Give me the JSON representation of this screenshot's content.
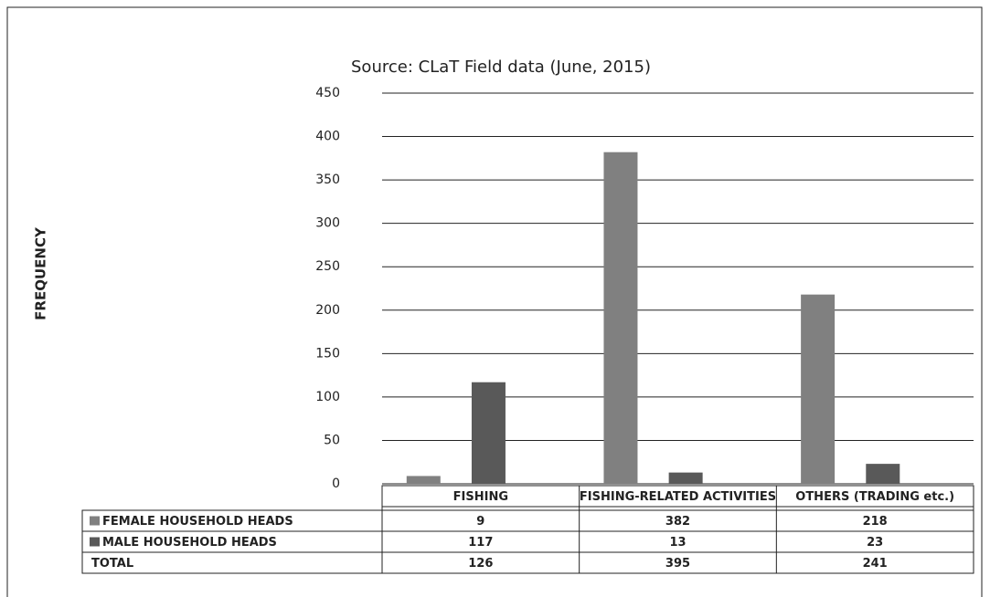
{
  "chart_data": {
    "type": "bar",
    "title": "Source: CLaT Field data (June, 2015)",
    "y_label": "FREQUENCY",
    "categories": [
      "FISHING",
      "FISHING-RELATED ACTIVITIES",
      "OTHERS (TRADING etc.)"
    ],
    "series": [
      {
        "name": "FEMALE HOUSEHOLD HEADS",
        "color": "#808080",
        "values": [
          9,
          382,
          218
        ]
      },
      {
        "name": "MALE HOUSEHOLD HEADS",
        "color": "#595959",
        "values": [
          117,
          13,
          23
        ]
      },
      {
        "name": "TOTAL",
        "values": [
          126,
          395,
          241
        ]
      }
    ],
    "ylim": [
      0,
      450
    ],
    "yticks": [
      0,
      50,
      100,
      150,
      200,
      250,
      300,
      350,
      400,
      450
    ],
    "grid": true
  }
}
